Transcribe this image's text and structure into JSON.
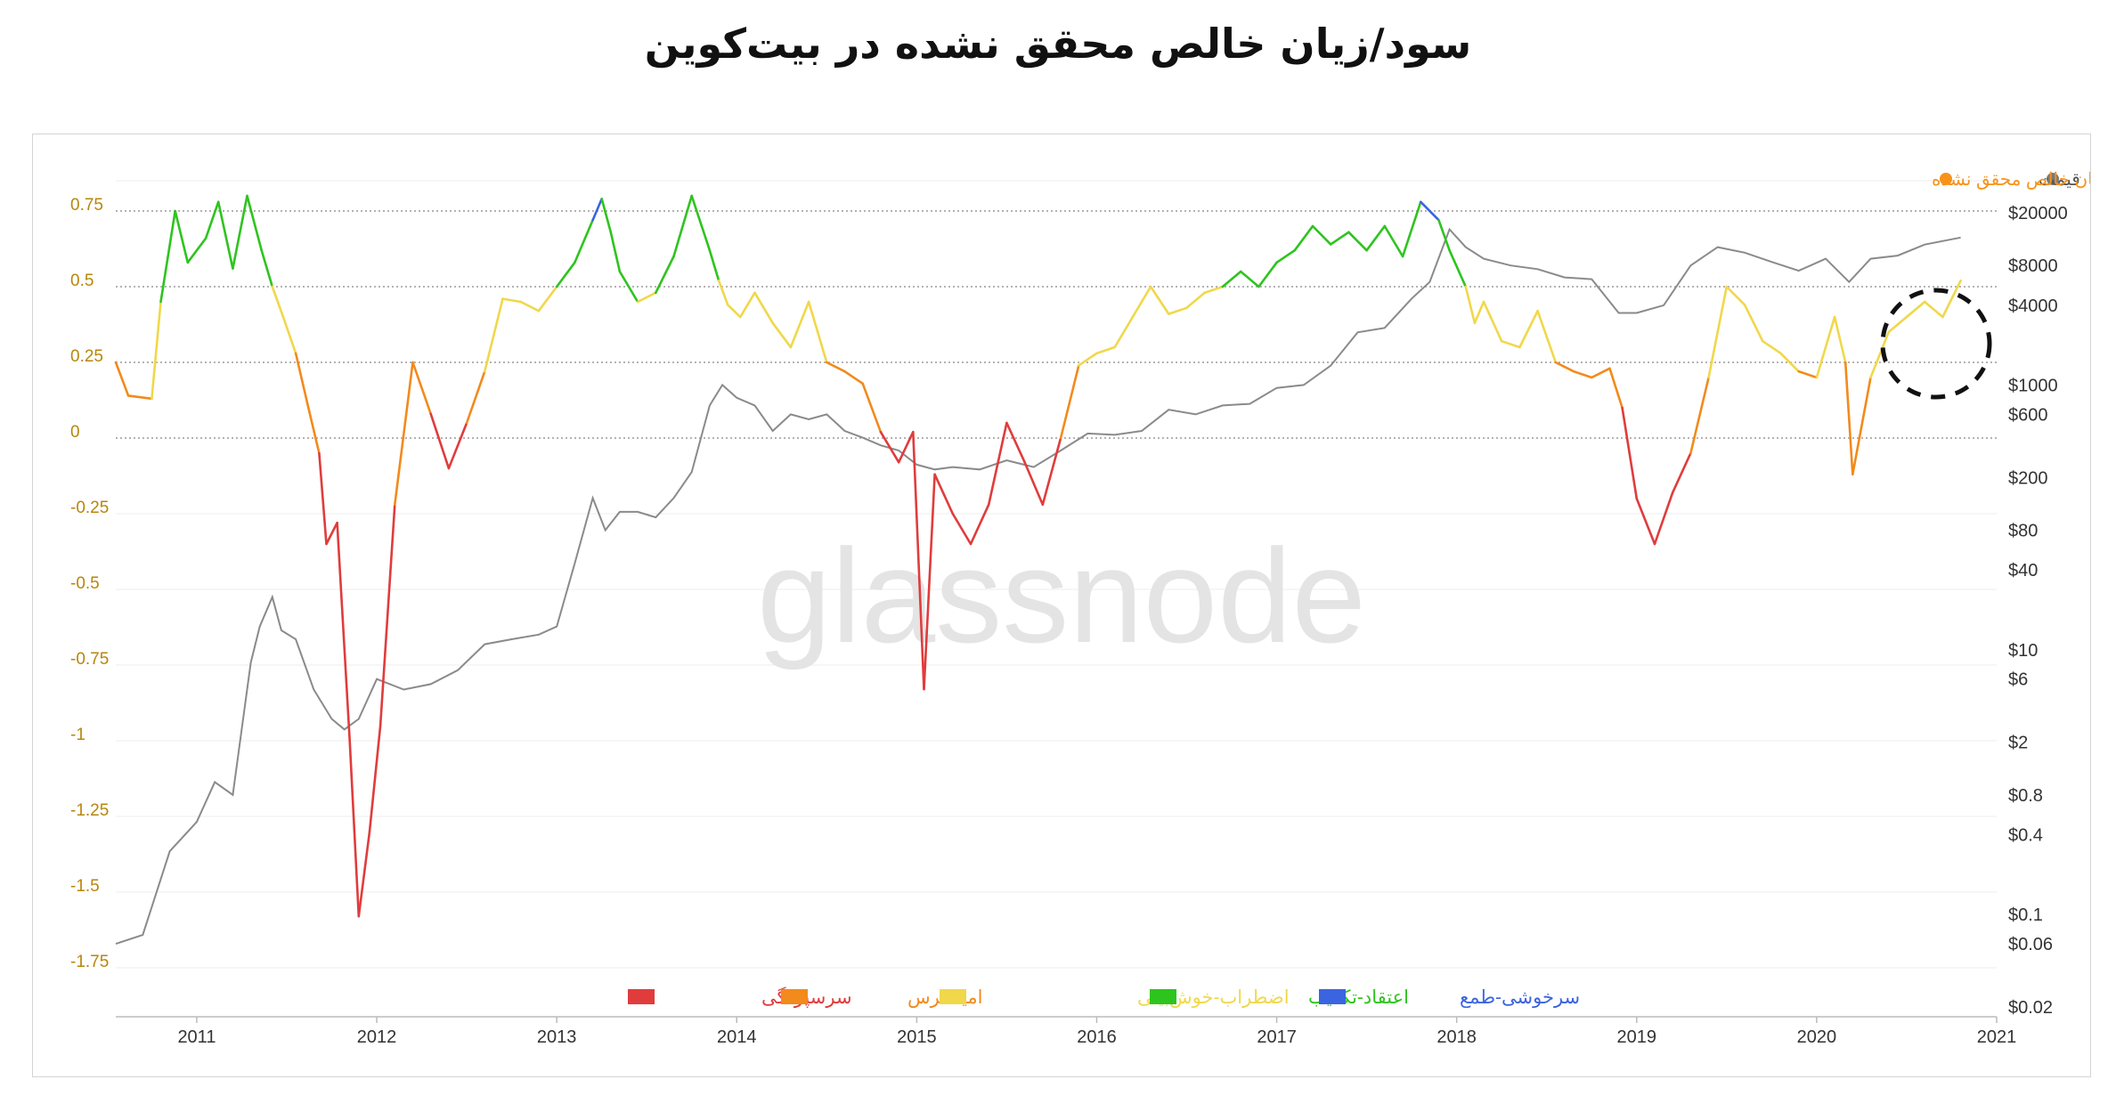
{
  "page": {
    "title": "سود/زیان خالص محقق نشده در بیت‌کوین"
  },
  "chart_data": {
    "type": "line",
    "title": "سود/زیان خالص محقق نشده در بیت‌کوین",
    "watermark": "glassnode",
    "x_ticks": [
      "2011",
      "2012",
      "2013",
      "2014",
      "2015",
      "2016",
      "2017",
      "2018",
      "2019",
      "2020",
      "2021"
    ],
    "y_left": {
      "ticks": [
        "0.75",
        "0.5",
        "0.25",
        "0",
        "-0.25",
        "-0.5",
        "-0.75",
        "-1",
        "-1.25",
        "-1.5",
        "-1.75"
      ],
      "ylim": [
        -1.75,
        0.9
      ]
    },
    "y_right": {
      "scale": "log",
      "ticks": [
        "$20000",
        "$8000",
        "$4000",
        "$1000",
        "$600",
        "$200",
        "$80",
        "$40",
        "$10",
        "$6",
        "$2",
        "$0.8",
        "$0.4",
        "$0.1",
        "$0.06",
        "$0.02"
      ]
    },
    "legend_top": [
      {
        "label": "قیمت",
        "color": "#7a7a7a"
      },
      {
        "label": "سود/زیان خالص محقق نشده",
        "color": "#f7931a"
      }
    ],
    "legend_bottom": [
      {
        "label": "سرسپردگی",
        "color": "#e03c3c"
      },
      {
        "label": "امید-ترس",
        "color": "#f28a1c"
      },
      {
        "label": "اضطراب-خوش‌بینی",
        "color": "#f0d84a"
      },
      {
        "label": "اعتقاد-تکذیب",
        "color": "#2ec41e"
      },
      {
        "label": "سرخوشی-طمع",
        "color": "#3b64e0"
      }
    ],
    "colors": {
      "capitulation": "#e03c3c",
      "hope_fear": "#f28a1c",
      "anxiety_optimism": "#f0d84a",
      "belief_denial": "#2ec41e",
      "euphoria_greed": "#3b64e0",
      "price": "#8a8a8a",
      "left_axis_text": "#b8860b"
    },
    "series": [
      {
        "name": "سود/زیان خالص محقق نشده",
        "x": [
          2010.55,
          2010.62,
          2010.75,
          2010.8,
          2010.88,
          2010.95,
          2011.05,
          2011.12,
          2011.2,
          2011.28,
          2011.36,
          2011.42,
          2011.48,
          2011.55,
          2011.62,
          2011.68,
          2011.72,
          2011.78,
          2011.85,
          2011.9,
          2011.96,
          2012.02,
          2012.1,
          2012.2,
          2012.3,
          2012.4,
          2012.5,
          2012.6,
          2012.7,
          2012.8,
          2012.9,
          2013.0,
          2013.1,
          2013.2,
          2013.25,
          2013.3,
          2013.35,
          2013.45,
          2013.55,
          2013.65,
          2013.75,
          2013.85,
          2013.9,
          2013.95,
          2014.02,
          2014.1,
          2014.2,
          2014.3,
          2014.4,
          2014.5,
          2014.6,
          2014.7,
          2014.8,
          2014.9,
          2014.98,
          2015.04,
          2015.1,
          2015.2,
          2015.3,
          2015.4,
          2015.5,
          2015.6,
          2015.7,
          2015.8,
          2015.9,
          2016.0,
          2016.1,
          2016.2,
          2016.3,
          2016.4,
          2016.5,
          2016.6,
          2016.7,
          2016.8,
          2016.9,
          2017.0,
          2017.1,
          2017.2,
          2017.3,
          2017.4,
          2017.5,
          2017.6,
          2017.7,
          2017.8,
          2017.9,
          2017.96,
          2018.05,
          2018.1,
          2018.15,
          2018.25,
          2018.35,
          2018.45,
          2018.55,
          2018.65,
          2018.75,
          2018.85,
          2018.92,
          2019.0,
          2019.1,
          2019.2,
          2019.3,
          2019.4,
          2019.5,
          2019.6,
          2019.7,
          2019.8,
          2019.9,
          2020.0,
          2020.1,
          2020.16,
          2020.2,
          2020.3,
          2020.4,
          2020.5,
          2020.6,
          2020.7,
          2020.8
        ],
        "values": [
          0.25,
          0.14,
          0.13,
          0.45,
          0.75,
          0.58,
          0.66,
          0.78,
          0.56,
          0.8,
          0.62,
          0.5,
          0.4,
          0.28,
          0.1,
          -0.05,
          -0.35,
          -0.28,
          -1.0,
          -1.58,
          -1.3,
          -0.95,
          -0.22,
          0.25,
          0.08,
          -0.1,
          0.05,
          0.22,
          0.46,
          0.45,
          0.42,
          0.5,
          0.58,
          0.72,
          0.79,
          0.68,
          0.55,
          0.45,
          0.48,
          0.6,
          0.8,
          0.62,
          0.52,
          0.44,
          0.4,
          0.48,
          0.38,
          0.3,
          0.45,
          0.25,
          0.22,
          0.18,
          0.02,
          -0.08,
          0.02,
          -0.83,
          -0.12,
          -0.25,
          -0.35,
          -0.22,
          0.05,
          -0.08,
          -0.22,
          0.0,
          0.24,
          0.28,
          0.3,
          0.4,
          0.5,
          0.41,
          0.43,
          0.48,
          0.5,
          0.55,
          0.5,
          0.58,
          0.62,
          0.7,
          0.64,
          0.68,
          0.62,
          0.7,
          0.6,
          0.78,
          0.72,
          0.62,
          0.5,
          0.38,
          0.45,
          0.32,
          0.3,
          0.42,
          0.25,
          0.22,
          0.2,
          0.23,
          0.1,
          -0.2,
          -0.35,
          -0.18,
          -0.05,
          0.2,
          0.5,
          0.44,
          0.32,
          0.28,
          0.22,
          0.2,
          0.4,
          0.25,
          -0.12,
          0.2,
          0.35,
          0.4,
          0.45,
          0.4,
          0.52
        ]
      },
      {
        "name": "قیمت",
        "x": [
          2010.55,
          2010.7,
          2010.85,
          2011.0,
          2011.1,
          2011.2,
          2011.3,
          2011.35,
          2011.42,
          2011.47,
          2011.55,
          2011.65,
          2011.75,
          2011.82,
          2011.9,
          2012.0,
          2012.15,
          2012.3,
          2012.45,
          2012.6,
          2012.75,
          2012.9,
          2013.0,
          2013.1,
          2013.2,
          2013.27,
          2013.35,
          2013.45,
          2013.55,
          2013.65,
          2013.75,
          2013.85,
          2013.92,
          2014.0,
          2014.1,
          2014.2,
          2014.3,
          2014.4,
          2014.5,
          2014.6,
          2014.7,
          2014.8,
          2014.9,
          2015.0,
          2015.1,
          2015.2,
          2015.35,
          2015.5,
          2015.65,
          2015.8,
          2015.95,
          2016.1,
          2016.25,
          2016.4,
          2016.55,
          2016.7,
          2016.85,
          2017.0,
          2017.15,
          2017.3,
          2017.45,
          2017.6,
          2017.75,
          2017.85,
          2017.96,
          2018.05,
          2018.15,
          2018.3,
          2018.45,
          2018.6,
          2018.75,
          2018.9,
          2019.0,
          2019.15,
          2019.3,
          2019.45,
          2019.6,
          2019.75,
          2019.9,
          2020.05,
          2020.18,
          2020.3,
          2020.45,
          2020.6,
          2020.8
        ],
        "values": [
          0.06,
          0.07,
          0.3,
          0.5,
          1.0,
          0.8,
          8,
          15,
          25,
          14,
          12,
          5,
          3,
          2.5,
          3,
          6,
          5,
          5.5,
          7,
          11,
          12,
          13,
          15,
          45,
          140,
          80,
          110,
          110,
          100,
          140,
          220,
          700,
          1000,
          800,
          700,
          450,
          600,
          550,
          600,
          450,
          400,
          350,
          320,
          250,
          230,
          240,
          230,
          270,
          240,
          320,
          430,
          420,
          450,
          650,
          600,
          700,
          720,
          950,
          1000,
          1400,
          2500,
          2700,
          4500,
          6000,
          15000,
          11000,
          9000,
          8000,
          7500,
          6500,
          6300,
          3500,
          3500,
          4000,
          8000,
          11000,
          10000,
          8500,
          7300,
          9000,
          6000,
          9000,
          9500,
          11500,
          13000
        ]
      }
    ]
  }
}
